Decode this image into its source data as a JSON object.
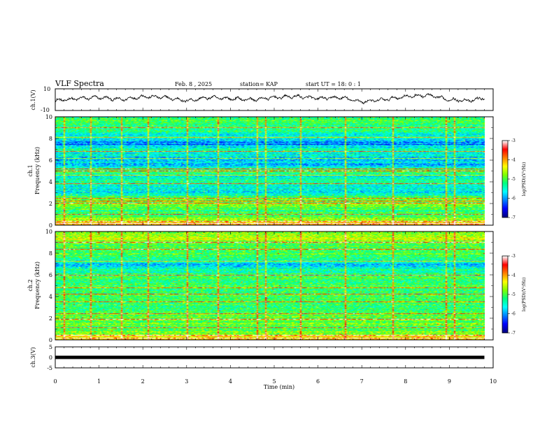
{
  "header": {
    "title": "VLF Spectra",
    "date": "Feb. 8 , 2025",
    "station": "station= KAP",
    "start": "start UT = 18: 0 : 1"
  },
  "colors": {
    "colormap": [
      "#00007f",
      "#0000ff",
      "#0080ff",
      "#00ffff",
      "#00ff80",
      "#80ff00",
      "#ffff00",
      "#ff8000",
      "#ff0000",
      "#ffffff"
    ],
    "trace": "#000000"
  },
  "chart_data": [
    {
      "id": "ch1-waveform",
      "type": "line",
      "ylabel": "ch.1(V)",
      "ylim": [
        -10,
        10
      ],
      "yticks": [
        "10",
        "-10"
      ],
      "xlim": [
        0,
        10
      ],
      "description_of_signal": "continuous waveform fluctuating roughly between -6 and +8 V",
      "anchors_x": [
        0,
        0.5,
        1.0,
        1.5,
        2.0,
        2.5,
        3.0,
        3.5,
        4.0,
        4.5,
        5.0,
        5.5,
        6.0,
        6.5,
        7.0,
        7.5,
        8.0,
        8.5,
        9.0,
        9.5,
        9.8
      ],
      "anchors_y": [
        -1,
        1,
        2,
        0,
        3,
        2,
        -1,
        2,
        1,
        0,
        2,
        3,
        1,
        2,
        -2,
        0,
        3,
        4,
        0,
        -1,
        2
      ]
    },
    {
      "id": "ch1-spectrogram",
      "type": "heatmap",
      "ylabel": "ch.1",
      "ylabel2": "Frequency (kHz)",
      "ylim": [
        0,
        10
      ],
      "yticks": [
        "0",
        "2",
        "4",
        "6",
        "8",
        "10"
      ],
      "xlim": [
        0,
        10
      ],
      "data_end_min": 9.8,
      "colorbar": {
        "label": "log(PSD)(V²/Hz)",
        "range": [
          -7,
          -3
        ],
        "ticks": [
          "-3",
          "-4",
          "-5",
          "-6",
          "-7"
        ]
      },
      "band_profile_freq_khz": [
        0,
        0.5,
        1,
        2,
        2.5,
        3,
        3.5,
        4,
        4.5,
        5,
        5.5,
        6,
        6.5,
        7,
        7.5,
        8,
        8.5,
        9,
        9.5,
        10
      ],
      "band_profile_level": [
        0.75,
        0.6,
        0.45,
        0.55,
        0.5,
        0.35,
        0.35,
        0.45,
        0.35,
        0.55,
        0.3,
        0.3,
        0.35,
        0.45,
        0.2,
        0.35,
        0.4,
        0.4,
        0.5,
        0.45
      ],
      "lines_khz": [
        0.1,
        0.3,
        1.0,
        2.0,
        2.2,
        2.5,
        3.8,
        4.6,
        5.0,
        5.2,
        6.2,
        6.8,
        8.1,
        9.0
      ],
      "spikes_min": [
        0.2,
        0.8,
        1.5,
        2.1,
        3.0,
        3.7,
        4.6,
        4.8,
        5.6,
        6.6,
        7.7,
        8.9,
        9.1
      ]
    },
    {
      "id": "ch2-spectrogram",
      "type": "heatmap",
      "ylabel": "ch.2",
      "ylabel2": "Frequency (kHz)",
      "ylim": [
        0,
        10
      ],
      "yticks": [
        "0",
        "2",
        "4",
        "6",
        "8",
        "10"
      ],
      "xlim": [
        0,
        10
      ],
      "data_end_min": 9.8,
      "colorbar": {
        "label": "log(PSD)(V²/Hz)",
        "range": [
          -7,
          -3
        ],
        "ticks": [
          "-3",
          "-4",
          "-5",
          "-6",
          "-7"
        ]
      },
      "band_profile_freq_khz": [
        0,
        0.5,
        1,
        2,
        2.5,
        3,
        3.5,
        4,
        4.5,
        5,
        5.5,
        6,
        6.5,
        7,
        7.5,
        8,
        8.5,
        9,
        9.5,
        10
      ],
      "band_profile_level": [
        0.75,
        0.6,
        0.5,
        0.55,
        0.5,
        0.45,
        0.5,
        0.5,
        0.45,
        0.5,
        0.45,
        0.45,
        0.4,
        0.3,
        0.45,
        0.5,
        0.5,
        0.55,
        0.6,
        0.55
      ],
      "lines_khz": [
        0.1,
        0.4,
        1.1,
        1.9,
        2.4,
        3.5,
        4.2,
        4.8,
        6.0,
        7.3,
        8.4,
        9.0
      ],
      "spikes_min": [
        0.2,
        0.8,
        1.5,
        2.1,
        3.0,
        3.7,
        4.6,
        4.8,
        5.6,
        6.6,
        7.7,
        8.9,
        9.1
      ]
    },
    {
      "id": "ch3-waveform",
      "type": "line",
      "ylabel": "ch.3(V)",
      "ylim": [
        -5,
        5
      ],
      "yticks": [
        "5",
        "0",
        "-5"
      ],
      "xlim": [
        0,
        10
      ],
      "xlabel": "Time (min)",
      "xticks": [
        "0",
        "1",
        "2",
        "3",
        "4",
        "5",
        "6",
        "7",
        "8",
        "9",
        "10"
      ],
      "band_y": [
        -0.8,
        0.8
      ],
      "data_end_min": 9.8
    }
  ]
}
